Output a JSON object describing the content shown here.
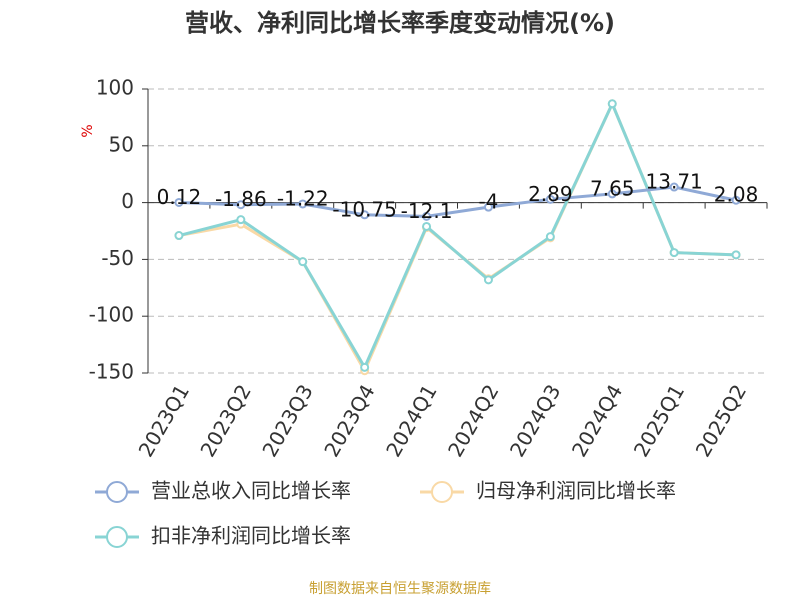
{
  "chart_data": {
    "type": "line",
    "title": "营收、净利同比增长率季度变动情况(%)",
    "y_label": "%",
    "categories": [
      "2023Q1",
      "2023Q2",
      "2023Q3",
      "2023Q4",
      "2024Q1",
      "2024Q2",
      "2024Q3",
      "2024Q4",
      "2025Q1",
      "2025Q2"
    ],
    "series": [
      {
        "name": "营业总收入同比增长率",
        "color": "#8fa9d6",
        "values": [
          0.12,
          -1.86,
          -1.22,
          -10.75,
          -12.1,
          -4,
          2.89,
          7.65,
          13.71,
          2.08
        ],
        "show_labels": true
      },
      {
        "name": "归母净利润同比增长率",
        "color": "#f9d9a6",
        "values": [
          -29,
          -19,
          -52,
          -148,
          -22,
          -67,
          -31,
          87,
          -44,
          -46
        ],
        "show_labels": false
      },
      {
        "name": "扣非净利润同比增长率",
        "color": "#88d4d4",
        "values": [
          -29,
          -15,
          -52,
          -145,
          -21,
          -68,
          -30,
          87,
          -44,
          -46
        ],
        "show_labels": false
      }
    ],
    "ylim": [
      -150,
      100
    ],
    "yticks": [
      -150,
      -100,
      -50,
      0,
      50,
      100
    ],
    "grid": true,
    "source": "制图数据来自恒生聚源数据库"
  }
}
